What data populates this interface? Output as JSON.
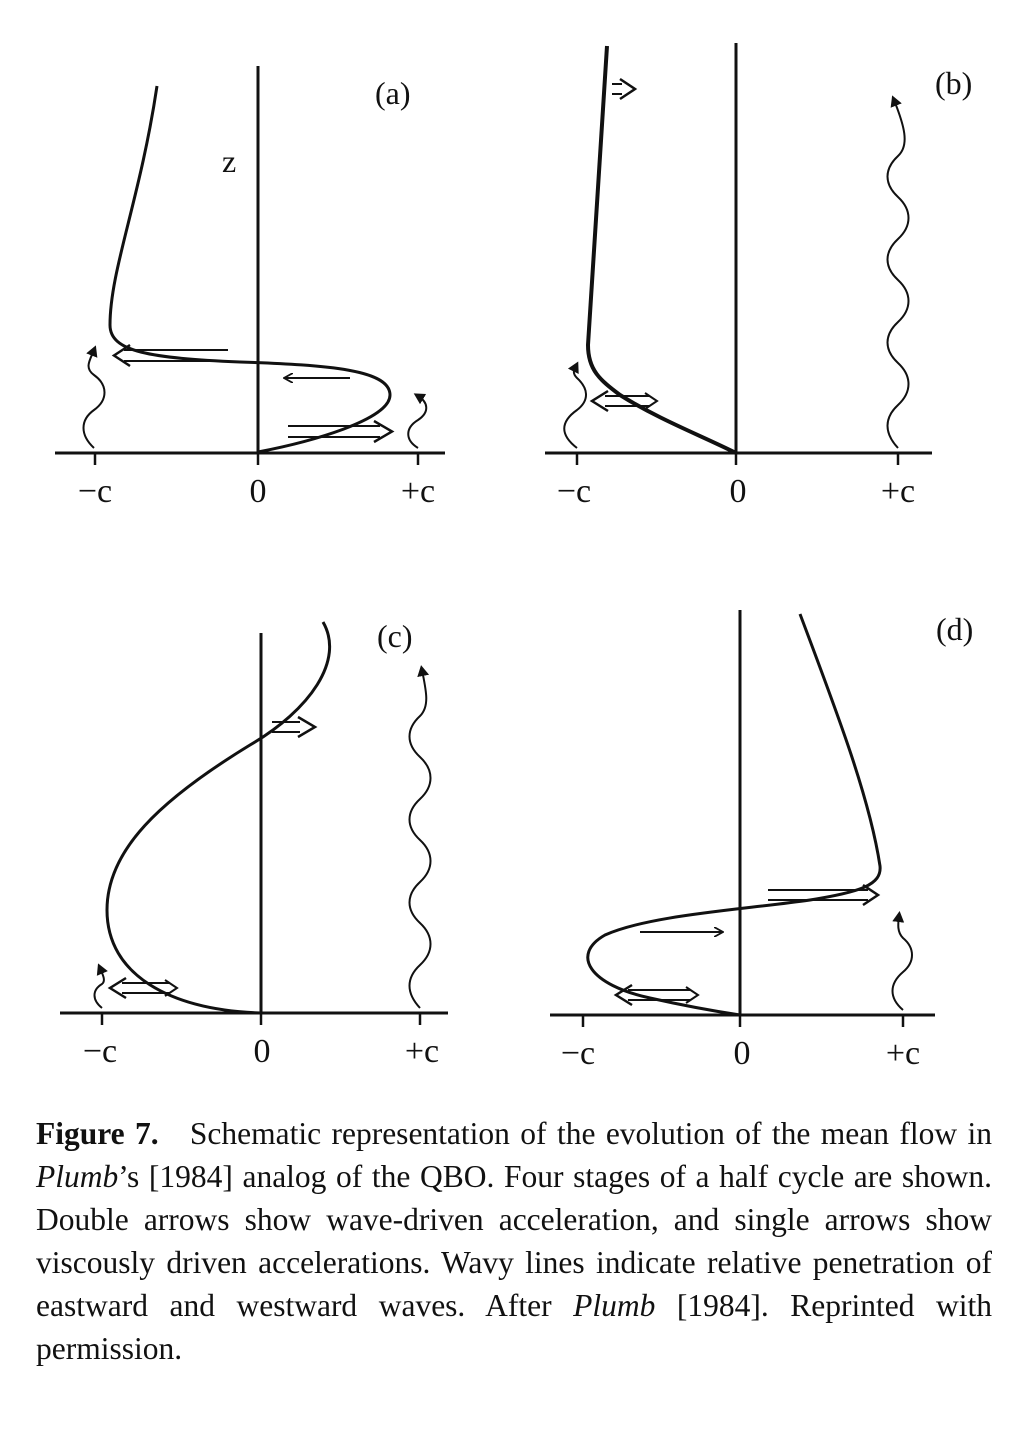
{
  "figure": {
    "panels": [
      {
        "id": "a",
        "tag": "(a)",
        "axis_label": "z",
        "ticks": [
          "−c",
          "0",
          "+c"
        ]
      },
      {
        "id": "b",
        "tag": "(b)",
        "ticks": [
          "−c",
          "0",
          "+c"
        ]
      },
      {
        "id": "c",
        "tag": "(c)",
        "ticks": [
          "−c",
          "0",
          "+c"
        ]
      },
      {
        "id": "d",
        "tag": "(d)",
        "ticks": [
          "−c",
          "0",
          "+c"
        ]
      }
    ],
    "colors": {
      "ink": "#111111",
      "background": "#ffffff"
    }
  },
  "caption": {
    "label": "Figure 7.",
    "part1": "Schematic representation of the evolution of the mean flow in ",
    "ref1": "Plumb",
    "part2": "’s [1984] analog of the QBO. Four stages of a half cycle are shown. Double arrows show wave-driven acceleration, and single arrows show viscously driven accelerations. Wavy lines indicate relative penetration of eastward and westward waves. After ",
    "ref2": "Plumb",
    "part3": " [1984]. Reprinted with permission."
  }
}
